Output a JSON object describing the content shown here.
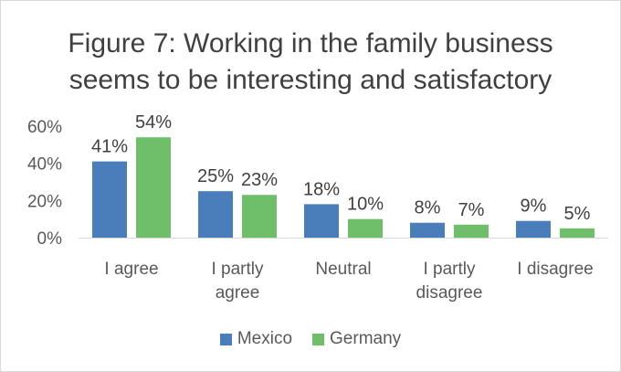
{
  "chart_data": {
    "type": "bar",
    "title_lines": [
      "Figure 7: Working in the family business",
      "seems to be interesting and satisfactory"
    ],
    "categories": [
      [
        "I agree"
      ],
      [
        "I partly",
        "agree"
      ],
      [
        "Neutral"
      ],
      [
        "I partly",
        "disagree"
      ],
      [
        "I disagree"
      ]
    ],
    "series": [
      {
        "name": "Mexico",
        "color": "#4a7ebb",
        "values": [
          41,
          25,
          18,
          8,
          9
        ],
        "labels": [
          "41%",
          "25%",
          "18%",
          "8%",
          "9%"
        ]
      },
      {
        "name": "Germany",
        "color": "#6fbf6a",
        "values": [
          54,
          23,
          10,
          7,
          5
        ],
        "labels": [
          "54%",
          "23%",
          "10%",
          "7%",
          "5%"
        ]
      }
    ],
    "yticks": [
      0,
      20,
      40,
      60
    ],
    "ytick_labels": [
      "0%",
      "20%",
      "40%",
      "60%"
    ],
    "ylim": [
      0,
      60
    ],
    "grid": false,
    "legend_position": "bottom"
  }
}
